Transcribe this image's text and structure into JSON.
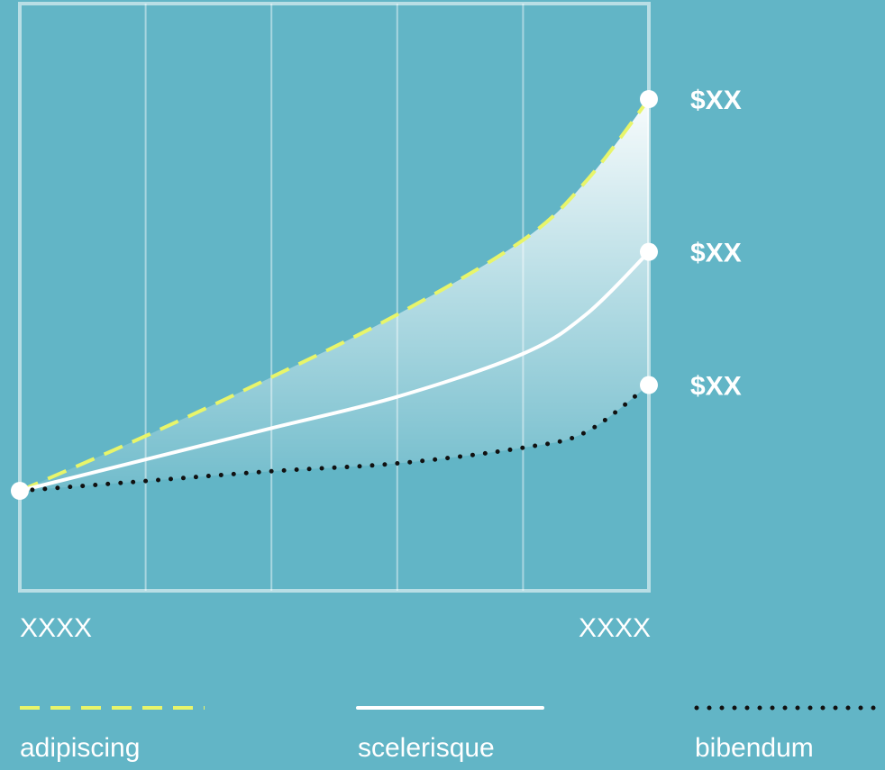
{
  "chart_data": {
    "type": "line",
    "x_tick_labels": [
      "XXXX",
      "XXXX"
    ],
    "ylim": [
      0,
      1
    ],
    "grid": {
      "vertical": true,
      "horizontal": false
    },
    "legend_placement": "bottom",
    "band_between": [
      "adipiscing",
      "bibendum"
    ],
    "series": [
      {
        "name": "adipiscing",
        "style": "dashed",
        "color": "#e8f56a",
        "x": [
          0,
          0.2,
          0.4,
          0.6,
          0.8,
          0.9,
          1.0
        ],
        "y": [
          0.0,
          0.14,
          0.29,
          0.45,
          0.64,
          0.79,
          1.0
        ],
        "end_label": "$XX"
      },
      {
        "name": "scelerisque",
        "style": "solid",
        "color": "#ffffff",
        "x": [
          0,
          0.2,
          0.4,
          0.6,
          0.8,
          0.9,
          1.0
        ],
        "y": [
          0.0,
          0.08,
          0.16,
          0.24,
          0.35,
          0.45,
          0.61
        ],
        "end_label": "$XX"
      },
      {
        "name": "bibendum",
        "style": "dotted",
        "color": "#111111",
        "x": [
          0,
          0.2,
          0.4,
          0.6,
          0.8,
          0.9,
          1.0
        ],
        "y": [
          0.0,
          0.025,
          0.05,
          0.07,
          0.11,
          0.15,
          0.27
        ],
        "end_label": "$XX"
      }
    ]
  }
}
